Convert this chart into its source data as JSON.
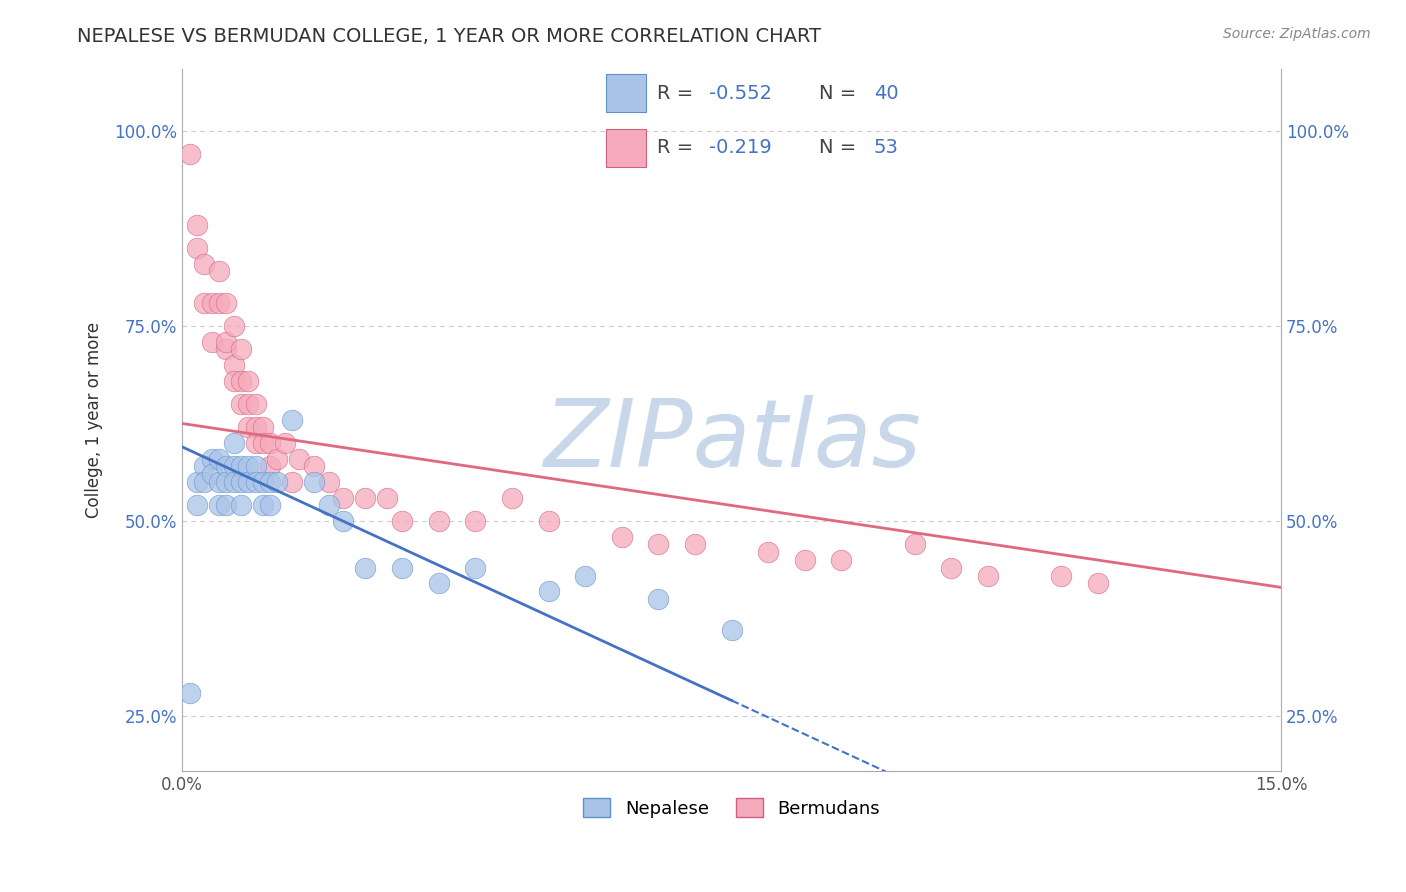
{
  "title": "NEPALESE VS BERMUDAN COLLEGE, 1 YEAR OR MORE CORRELATION CHART",
  "source_text": "Source: ZipAtlas.com",
  "ylabel": "College, 1 year or more",
  "xlim": [
    0.0,
    0.15
  ],
  "ylim": [
    0.18,
    1.08
  ],
  "xticks": [
    0.0,
    0.15
  ],
  "xticklabels": [
    "0.0%",
    "15.0%"
  ],
  "yticks": [
    0.25,
    0.5,
    0.75,
    1.0
  ],
  "yticklabels": [
    "25.0%",
    "50.0%",
    "75.0%",
    "100.0%"
  ],
  "grid_color": "#cccccc",
  "background_color": "#ffffff",
  "watermark": "ZIPatlas",
  "watermark_color": "#c8d8ea",
  "nepalese_color": "#aac4e8",
  "bermudan_color": "#f5aabb",
  "nepalese_edge_color": "#6090cc",
  "bermudan_edge_color": "#d06080",
  "nepalese_line_color": "#4472c4",
  "bermudan_line_color": "#e06880",
  "R_nepalese": -0.552,
  "N_nepalese": 40,
  "R_bermudan": -0.219,
  "N_bermudan": 53,
  "nepalese_x": [
    0.001,
    0.002,
    0.002,
    0.003,
    0.003,
    0.004,
    0.004,
    0.005,
    0.005,
    0.005,
    0.006,
    0.006,
    0.006,
    0.007,
    0.007,
    0.007,
    0.008,
    0.008,
    0.008,
    0.009,
    0.009,
    0.01,
    0.01,
    0.011,
    0.011,
    0.012,
    0.012,
    0.013,
    0.015,
    0.018,
    0.02,
    0.022,
    0.025,
    0.03,
    0.035,
    0.04,
    0.05,
    0.055,
    0.065,
    0.075
  ],
  "nepalese_y": [
    0.28,
    0.55,
    0.52,
    0.57,
    0.55,
    0.58,
    0.56,
    0.58,
    0.55,
    0.52,
    0.57,
    0.55,
    0.52,
    0.6,
    0.57,
    0.55,
    0.57,
    0.55,
    0.52,
    0.57,
    0.55,
    0.57,
    0.55,
    0.55,
    0.52,
    0.55,
    0.52,
    0.55,
    0.63,
    0.55,
    0.52,
    0.5,
    0.44,
    0.44,
    0.42,
    0.44,
    0.41,
    0.43,
    0.4,
    0.36
  ],
  "bermudan_x": [
    0.001,
    0.002,
    0.002,
    0.003,
    0.003,
    0.004,
    0.004,
    0.005,
    0.005,
    0.006,
    0.006,
    0.006,
    0.007,
    0.007,
    0.007,
    0.008,
    0.008,
    0.008,
    0.009,
    0.009,
    0.009,
    0.01,
    0.01,
    0.01,
    0.011,
    0.011,
    0.012,
    0.012,
    0.013,
    0.014,
    0.015,
    0.016,
    0.018,
    0.02,
    0.022,
    0.025,
    0.028,
    0.03,
    0.035,
    0.04,
    0.045,
    0.05,
    0.06,
    0.065,
    0.07,
    0.08,
    0.085,
    0.09,
    0.1,
    0.105,
    0.11,
    0.12,
    0.125
  ],
  "bermudan_y": [
    0.97,
    0.88,
    0.85,
    0.83,
    0.78,
    0.78,
    0.73,
    0.82,
    0.78,
    0.72,
    0.78,
    0.73,
    0.75,
    0.7,
    0.68,
    0.72,
    0.68,
    0.65,
    0.68,
    0.65,
    0.62,
    0.65,
    0.62,
    0.6,
    0.62,
    0.6,
    0.6,
    0.57,
    0.58,
    0.6,
    0.55,
    0.58,
    0.57,
    0.55,
    0.53,
    0.53,
    0.53,
    0.5,
    0.5,
    0.5,
    0.53,
    0.5,
    0.48,
    0.47,
    0.47,
    0.46,
    0.45,
    0.45,
    0.47,
    0.44,
    0.43,
    0.43,
    0.42
  ],
  "nep_line_x0": 0.0,
  "nep_line_y0": 0.595,
  "nep_line_x1": 0.075,
  "nep_line_y1": 0.27,
  "ber_line_x0": 0.0,
  "ber_line_y0": 0.625,
  "ber_line_x1": 0.15,
  "ber_line_y1": 0.415
}
